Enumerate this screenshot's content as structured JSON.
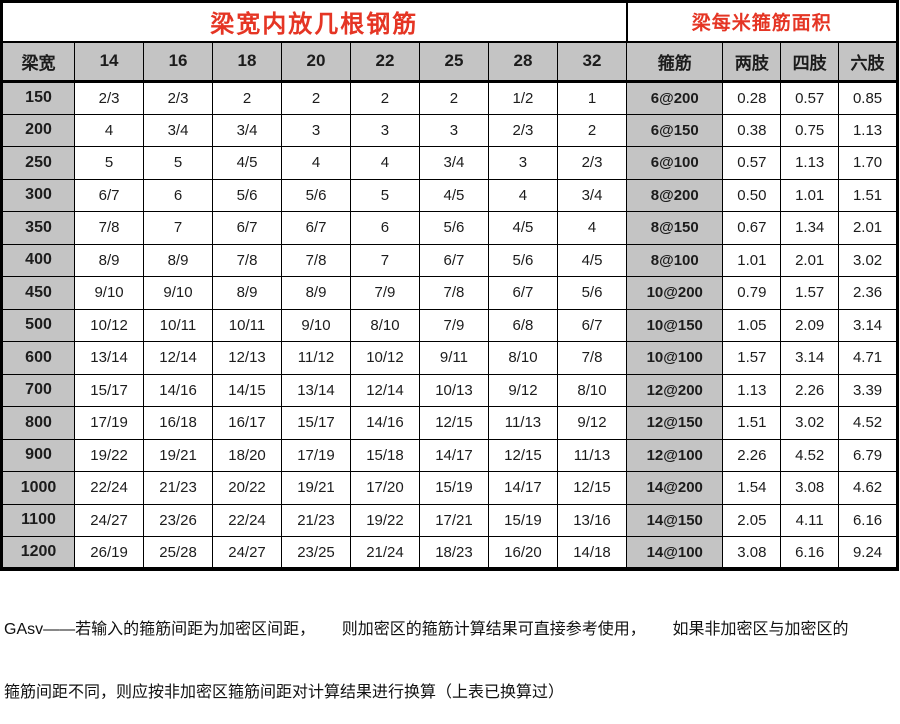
{
  "titles": {
    "left": "梁宽内放几根钢筋",
    "right": "梁每米箍筋面积"
  },
  "columns": [
    "梁宽",
    "14",
    "16",
    "18",
    "20",
    "22",
    "25",
    "28",
    "32",
    "箍筋",
    "两肢",
    "四肢",
    "六肢"
  ],
  "rows": [
    {
      "width": "150",
      "bars": [
        "2/3",
        "2/3",
        "2",
        "2",
        "2",
        "2",
        "1/2",
        "1"
      ],
      "stirrup": "6@200",
      "areas": [
        "0.28",
        "0.57",
        "0.85"
      ]
    },
    {
      "width": "200",
      "bars": [
        "4",
        "3/4",
        "3/4",
        "3",
        "3",
        "3",
        "2/3",
        "2"
      ],
      "stirrup": "6@150",
      "areas": [
        "0.38",
        "0.75",
        "1.13"
      ]
    },
    {
      "width": "250",
      "bars": [
        "5",
        "5",
        "4/5",
        "4",
        "4",
        "3/4",
        "3",
        "2/3"
      ],
      "stirrup": "6@100",
      "areas": [
        "0.57",
        "1.13",
        "1.70"
      ]
    },
    {
      "width": "300",
      "bars": [
        "6/7",
        "6",
        "5/6",
        "5/6",
        "5",
        "4/5",
        "4",
        "3/4"
      ],
      "stirrup": "8@200",
      "areas": [
        "0.50",
        "1.01",
        "1.51"
      ]
    },
    {
      "width": "350",
      "bars": [
        "7/8",
        "7",
        "6/7",
        "6/7",
        "6",
        "5/6",
        "4/5",
        "4"
      ],
      "stirrup": "8@150",
      "areas": [
        "0.67",
        "1.34",
        "2.01"
      ]
    },
    {
      "width": "400",
      "bars": [
        "8/9",
        "8/9",
        "7/8",
        "7/8",
        "7",
        "6/7",
        "5/6",
        "4/5"
      ],
      "stirrup": "8@100",
      "areas": [
        "1.01",
        "2.01",
        "3.02"
      ]
    },
    {
      "width": "450",
      "bars": [
        "9/10",
        "9/10",
        "8/9",
        "8/9",
        "7/9",
        "7/8",
        "6/7",
        "5/6"
      ],
      "stirrup": "10@200",
      "areas": [
        "0.79",
        "1.57",
        "2.36"
      ]
    },
    {
      "width": "500",
      "bars": [
        "10/12",
        "10/11",
        "10/11",
        "9/10",
        "8/10",
        "7/9",
        "6/8",
        "6/7"
      ],
      "stirrup": "10@150",
      "areas": [
        "1.05",
        "2.09",
        "3.14"
      ]
    },
    {
      "width": "600",
      "bars": [
        "13/14",
        "12/14",
        "12/13",
        "11/12",
        "10/12",
        "9/11",
        "8/10",
        "7/8"
      ],
      "stirrup": "10@100",
      "areas": [
        "1.57",
        "3.14",
        "4.71"
      ]
    },
    {
      "width": "700",
      "bars": [
        "15/17",
        "14/16",
        "14/15",
        "13/14",
        "12/14",
        "10/13",
        "9/12",
        "8/10"
      ],
      "stirrup": "12@200",
      "areas": [
        "1.13",
        "2.26",
        "3.39"
      ]
    },
    {
      "width": "800",
      "bars": [
        "17/19",
        "16/18",
        "16/17",
        "15/17",
        "14/16",
        "12/15",
        "11/13",
        "9/12"
      ],
      "stirrup": "12@150",
      "areas": [
        "1.51",
        "3.02",
        "4.52"
      ]
    },
    {
      "width": "900",
      "bars": [
        "19/22",
        "19/21",
        "18/20",
        "17/19",
        "15/18",
        "14/17",
        "12/15",
        "11/13"
      ],
      "stirrup": "12@100",
      "areas": [
        "2.26",
        "4.52",
        "6.79"
      ]
    },
    {
      "width": "1000",
      "bars": [
        "22/24",
        "21/23",
        "20/22",
        "19/21",
        "17/20",
        "15/19",
        "14/17",
        "12/15"
      ],
      "stirrup": "14@200",
      "areas": [
        "1.54",
        "3.08",
        "4.62"
      ]
    },
    {
      "width": "1100",
      "bars": [
        "24/27",
        "23/26",
        "22/24",
        "21/23",
        "19/22",
        "17/21",
        "15/19",
        "13/16"
      ],
      "stirrup": "14@150",
      "areas": [
        "2.05",
        "4.11",
        "6.16"
      ]
    },
    {
      "width": "1200",
      "bars": [
        "26/19",
        "25/28",
        "24/27",
        "23/25",
        "21/24",
        "18/23",
        "16/20",
        "14/18"
      ],
      "stirrup": "14@100",
      "areas": [
        "3.08",
        "6.16",
        "9.24"
      ]
    }
  ],
  "footer": {
    "line1": "GAsv——若输入的箍筋间距为加密区间距，      则加密区的箍筋计算结果可直接参考使用，      如果非加密区与加密区的",
    "line2": "箍筋间距不同，则应按非加密区箍筋间距对计算结果进行换算（上表已换算过）"
  },
  "colors": {
    "title_red": "#e53524",
    "header_gray": "#c4c4c4",
    "border_black": "#000000"
  }
}
